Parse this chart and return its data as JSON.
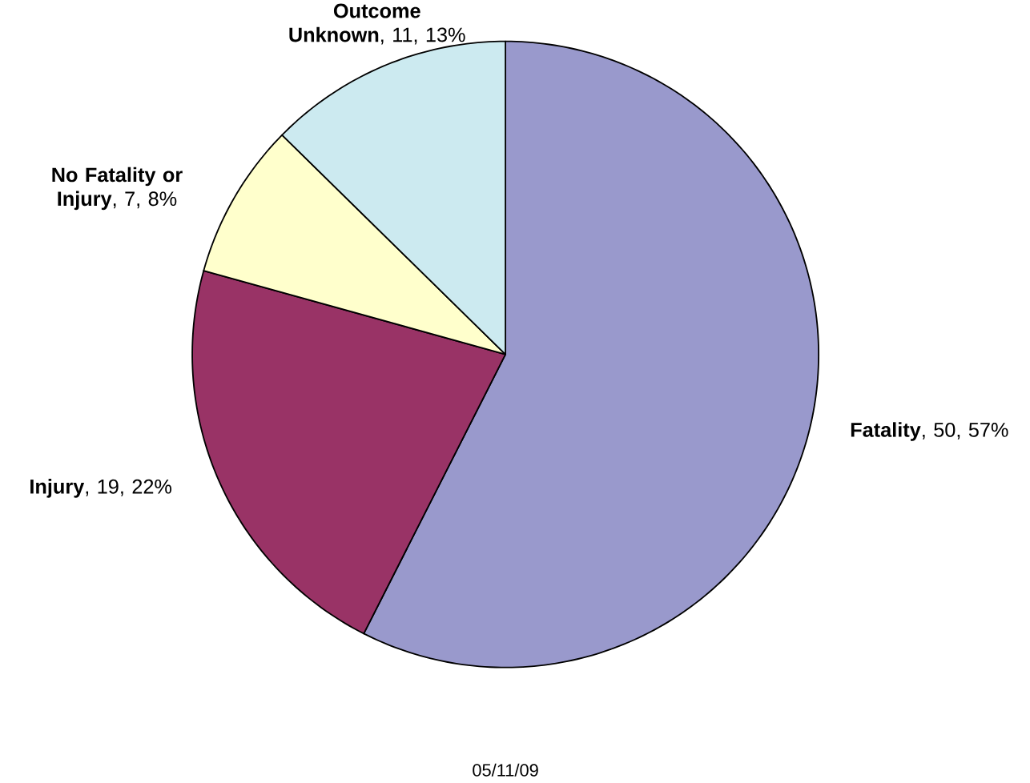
{
  "chart_data": {
    "type": "pie",
    "categories": [
      "Fatality",
      "Injury",
      "No Fatality or Injury",
      "Outcome Unknown"
    ],
    "values": [
      50,
      19,
      7,
      11
    ],
    "value_labels": [
      ", 50, 57%",
      ", 19, 22%",
      ", 7, 8%",
      ", 11, 13%"
    ],
    "colors": [
      "#9999cc",
      "#993366",
      "#ffffcc",
      "#cceaf0"
    ],
    "annotations": [
      "05/11/09"
    ]
  }
}
